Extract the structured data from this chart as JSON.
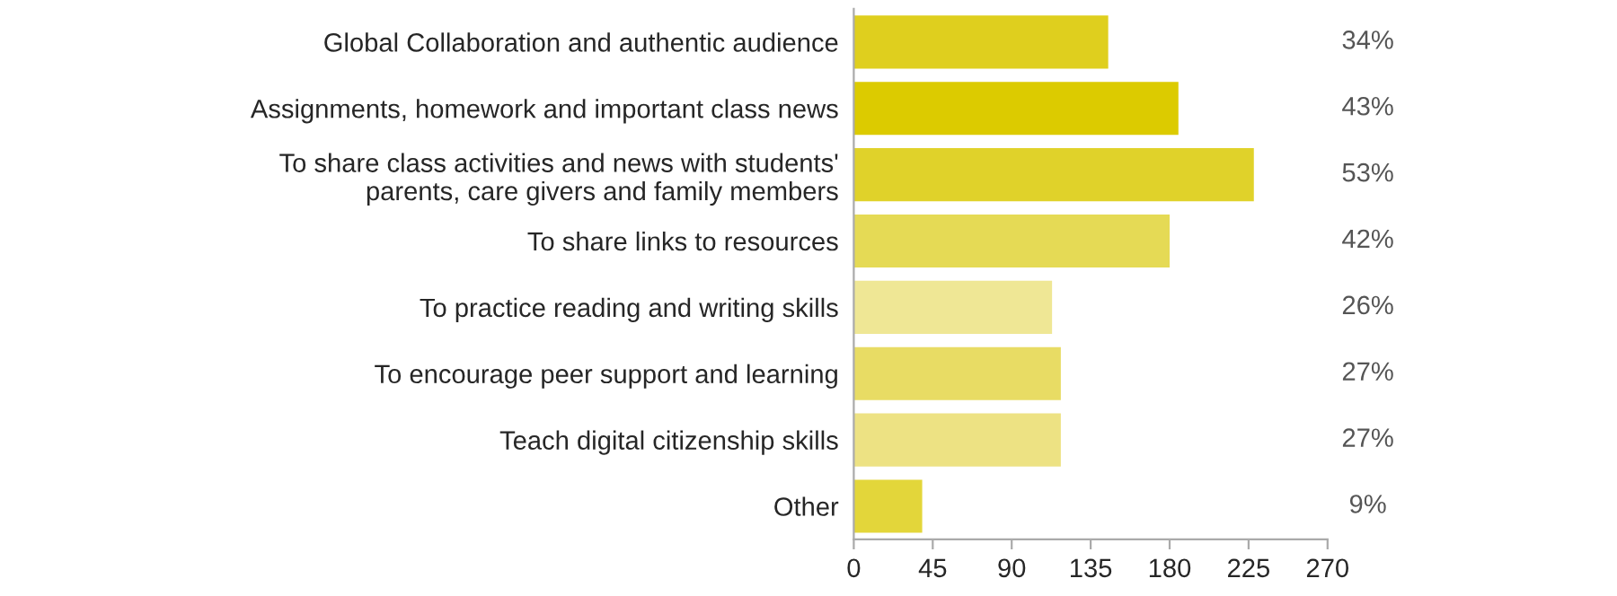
{
  "chart_data": {
    "type": "bar",
    "orientation": "horizontal",
    "categories": [
      "Global Collaboration and authentic audience",
      "Assignments, homework and important class news",
      "To share class activities and news with students'\nparents, care givers and family members",
      "To share links to resources",
      "To practice reading and writing skills",
      "To encourage peer support and learning",
      "Teach digital citizenship skills",
      "Other"
    ],
    "values": [
      145,
      185,
      228,
      180,
      113,
      118,
      118,
      39
    ],
    "colors": [
      "#dfcf1e",
      "#dccb00",
      "#e0d22a",
      "#e5da55",
      "#efe795",
      "#e8dc64",
      "#ede283",
      "#e3d63a"
    ],
    "annotations": [
      "34%",
      "43%",
      "53%",
      "42%",
      "26%",
      "27%",
      "27%",
      "9%"
    ],
    "xlim": [
      0,
      270
    ],
    "xticks": [
      0,
      45,
      90,
      135,
      180,
      225,
      270
    ],
    "grid": false,
    "legend": false
  }
}
